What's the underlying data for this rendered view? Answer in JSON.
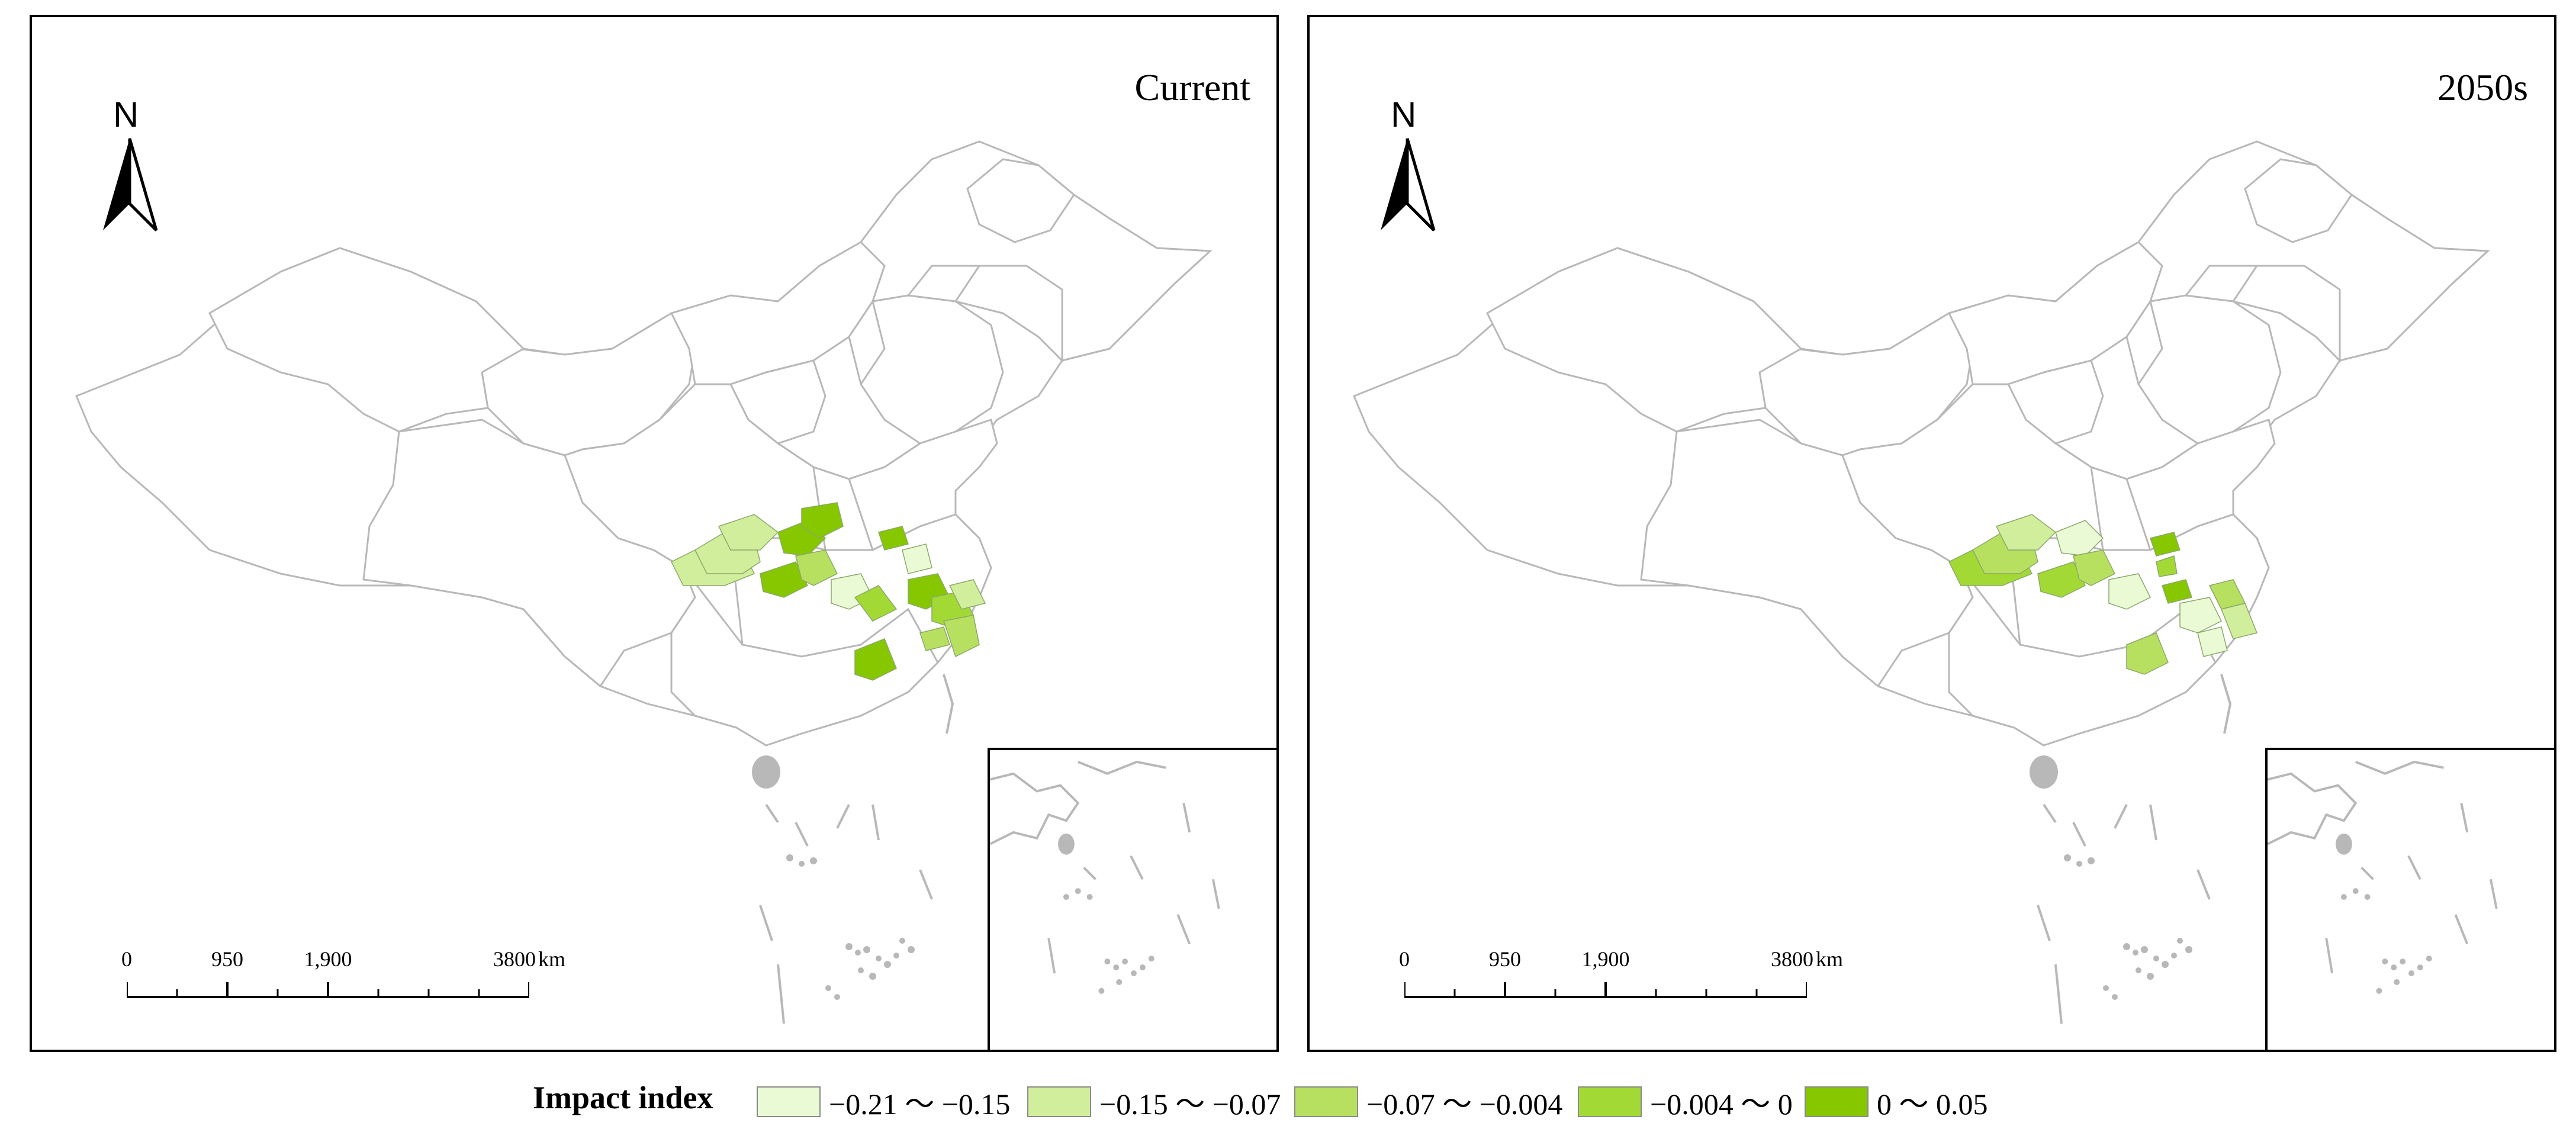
{
  "panels": [
    {
      "title": "Current"
    },
    {
      "title": "2050s"
    }
  ],
  "north_arrow": {
    "label": "N"
  },
  "scale_bar": {
    "ticks": [
      "0",
      "950",
      "1,900",
      "3800"
    ],
    "unit": "km"
  },
  "legend": {
    "title": "Impact index",
    "classes": [
      {
        "label": "−0.21 ～ −0.15",
        "color": "#eafad5"
      },
      {
        "label": "−0.15 ～ −0.07",
        "color": "#d1ee9c"
      },
      {
        "label": "−0.07 ～ −0.004",
        "color": "#b7e060"
      },
      {
        "label": "−0.004 ～ 0",
        "color": "#a3d935"
      },
      {
        "label": "0 ～ 0.05",
        "color": "#86c700"
      }
    ]
  },
  "colors": {
    "boundary": "#b8b8b8",
    "frame": "#000000"
  }
}
